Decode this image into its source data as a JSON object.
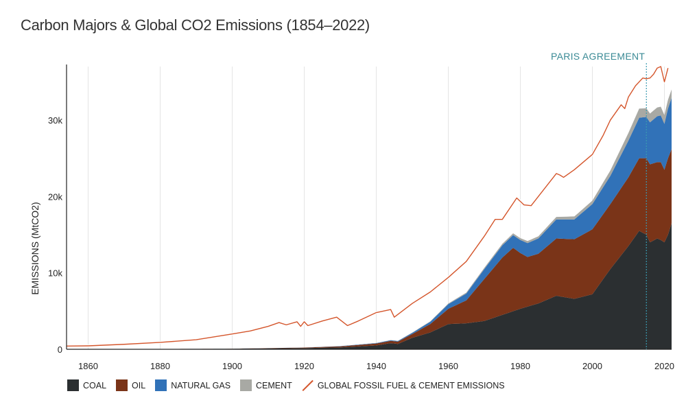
{
  "title": "Carbon Majors & Global CO2 Emissions (1854–2022)",
  "annotation": "PARIS AGREEMENT",
  "legend": {
    "coal": "COAL",
    "oil": "OIL",
    "gas": "NATURAL GAS",
    "cement": "CEMENT",
    "global": "GLOBAL FOSSIL FUEL & CEMENT EMISSIONS"
  },
  "chart_data": {
    "type": "area",
    "title": "Carbon Majors & Global CO2 Emissions (1854–2022)",
    "xlabel": "",
    "ylabel": "EMISSIONS (MtCO2)",
    "xlim": [
      1854,
      2022
    ],
    "ylim": [
      0,
      37000
    ],
    "x_ticks": [
      "1860",
      "1880",
      "1900",
      "1920",
      "1940",
      "1960",
      "1980",
      "2000",
      "2020"
    ],
    "y_ticks": [
      "0",
      "10k",
      "20k",
      "30k"
    ],
    "grid": "vertical",
    "legend_position": "bottom",
    "annotations": [
      {
        "x": 2015,
        "label": "PARIS AGREEMENT"
      }
    ],
    "colors": {
      "coal": "#2b2f31",
      "oil": "#7a3418",
      "gas": "#3172b8",
      "cement": "#a8a9a4",
      "global": "#d4552b"
    },
    "stacked_series": [
      {
        "name": "COAL",
        "points": [
          [
            1854,
            0
          ],
          [
            1900,
            70
          ],
          [
            1910,
            120
          ],
          [
            1920,
            150
          ],
          [
            1930,
            250
          ],
          [
            1940,
            500
          ],
          [
            1944,
            800
          ],
          [
            1946,
            700
          ],
          [
            1950,
            1500
          ],
          [
            1955,
            2200
          ],
          [
            1960,
            3300
          ],
          [
            1965,
            3400
          ],
          [
            1970,
            3700
          ],
          [
            1975,
            4500
          ],
          [
            1980,
            5300
          ],
          [
            1985,
            6000
          ],
          [
            1990,
            7000
          ],
          [
            1995,
            6600
          ],
          [
            2000,
            7200
          ],
          [
            2005,
            10500
          ],
          [
            2010,
            13500
          ],
          [
            2013,
            15500
          ],
          [
            2015,
            15000
          ],
          [
            2016,
            14000
          ],
          [
            2018,
            14500
          ],
          [
            2019,
            14300
          ],
          [
            2020,
            14000
          ],
          [
            2021,
            15000
          ],
          [
            2022,
            16500
          ]
        ]
      },
      {
        "name": "OIL",
        "points": [
          [
            1854,
            0
          ],
          [
            1900,
            5
          ],
          [
            1910,
            30
          ],
          [
            1920,
            70
          ],
          [
            1930,
            130
          ],
          [
            1940,
            250
          ],
          [
            1944,
            300
          ],
          [
            1946,
            300
          ],
          [
            1950,
            500
          ],
          [
            1955,
            1100
          ],
          [
            1960,
            2000
          ],
          [
            1965,
            3000
          ],
          [
            1970,
            5500
          ],
          [
            1975,
            7500
          ],
          [
            1978,
            8300
          ],
          [
            1980,
            7300
          ],
          [
            1982,
            6500
          ],
          [
            1985,
            6500
          ],
          [
            1990,
            7500
          ],
          [
            1995,
            7800
          ],
          [
            2000,
            8500
          ],
          [
            2005,
            8500
          ],
          [
            2010,
            9000
          ],
          [
            2013,
            9500
          ],
          [
            2015,
            10000
          ],
          [
            2016,
            10200
          ],
          [
            2018,
            10000
          ],
          [
            2019,
            10200
          ],
          [
            2020,
            9500
          ],
          [
            2021,
            10000
          ],
          [
            2022,
            9700
          ]
        ]
      },
      {
        "name": "NATURAL GAS",
        "points": [
          [
            1854,
            0
          ],
          [
            1900,
            0
          ],
          [
            1920,
            10
          ],
          [
            1930,
            30
          ],
          [
            1940,
            60
          ],
          [
            1944,
            80
          ],
          [
            1946,
            80
          ],
          [
            1950,
            150
          ],
          [
            1955,
            300
          ],
          [
            1960,
            600
          ],
          [
            1965,
            900
          ],
          [
            1970,
            1300
          ],
          [
            1975,
            1600
          ],
          [
            1980,
            1700
          ],
          [
            1985,
            2000
          ],
          [
            1990,
            2500
          ],
          [
            1995,
            2600
          ],
          [
            2000,
            3300
          ],
          [
            2005,
            3700
          ],
          [
            2010,
            4800
          ],
          [
            2013,
            5300
          ],
          [
            2015,
            5400
          ],
          [
            2016,
            5500
          ],
          [
            2018,
            6000
          ],
          [
            2019,
            6100
          ],
          [
            2020,
            6000
          ],
          [
            2021,
            6500
          ],
          [
            2022,
            6700
          ]
        ]
      },
      {
        "name": "CEMENT",
        "points": [
          [
            1854,
            0
          ],
          [
            1920,
            0
          ],
          [
            1930,
            10
          ],
          [
            1940,
            20
          ],
          [
            1950,
            40
          ],
          [
            1960,
            90
          ],
          [
            1970,
            160
          ],
          [
            1980,
            250
          ],
          [
            1990,
            320
          ],
          [
            2000,
            450
          ],
          [
            2005,
            700
          ],
          [
            2010,
            1000
          ],
          [
            2013,
            1200
          ],
          [
            2015,
            1150
          ],
          [
            2016,
            1150
          ],
          [
            2018,
            1150
          ],
          [
            2019,
            1150
          ],
          [
            2020,
            1150
          ],
          [
            2021,
            1150
          ],
          [
            2022,
            1100
          ]
        ]
      }
    ],
    "line_series": {
      "name": "GLOBAL FOSSIL FUEL & CEMENT EMISSIONS",
      "points": [
        [
          1854,
          420
        ],
        [
          1860,
          450
        ],
        [
          1870,
          650
        ],
        [
          1880,
          900
        ],
        [
          1890,
          1250
        ],
        [
          1900,
          2000
        ],
        [
          1905,
          2400
        ],
        [
          1910,
          3000
        ],
        [
          1913,
          3500
        ],
        [
          1915,
          3200
        ],
        [
          1918,
          3600
        ],
        [
          1919,
          3000
        ],
        [
          1920,
          3600
        ],
        [
          1921,
          3100
        ],
        [
          1925,
          3700
        ],
        [
          1929,
          4200
        ],
        [
          1932,
          3100
        ],
        [
          1935,
          3700
        ],
        [
          1940,
          4800
        ],
        [
          1943,
          5100
        ],
        [
          1944,
          5200
        ],
        [
          1945,
          4200
        ],
        [
          1950,
          6000
        ],
        [
          1955,
          7500
        ],
        [
          1960,
          9400
        ],
        [
          1965,
          11500
        ],
        [
          1970,
          14800
        ],
        [
          1973,
          17000
        ],
        [
          1975,
          17000
        ],
        [
          1979,
          19800
        ],
        [
          1981,
          18900
        ],
        [
          1983,
          18800
        ],
        [
          1985,
          20000
        ],
        [
          1990,
          23000
        ],
        [
          1991,
          22800
        ],
        [
          1992,
          22500
        ],
        [
          1995,
          23500
        ],
        [
          2000,
          25500
        ],
        [
          2003,
          28000
        ],
        [
          2005,
          30000
        ],
        [
          2008,
          32000
        ],
        [
          2009,
          31500
        ],
        [
          2010,
          33000
        ],
        [
          2012,
          34500
        ],
        [
          2014,
          35500
        ],
        [
          2015,
          35400
        ],
        [
          2016,
          35500
        ],
        [
          2017,
          36000
        ],
        [
          2018,
          36800
        ],
        [
          2019,
          37000
        ],
        [
          2020,
          35000
        ],
        [
          2021,
          36800
        ]
      ]
    }
  }
}
